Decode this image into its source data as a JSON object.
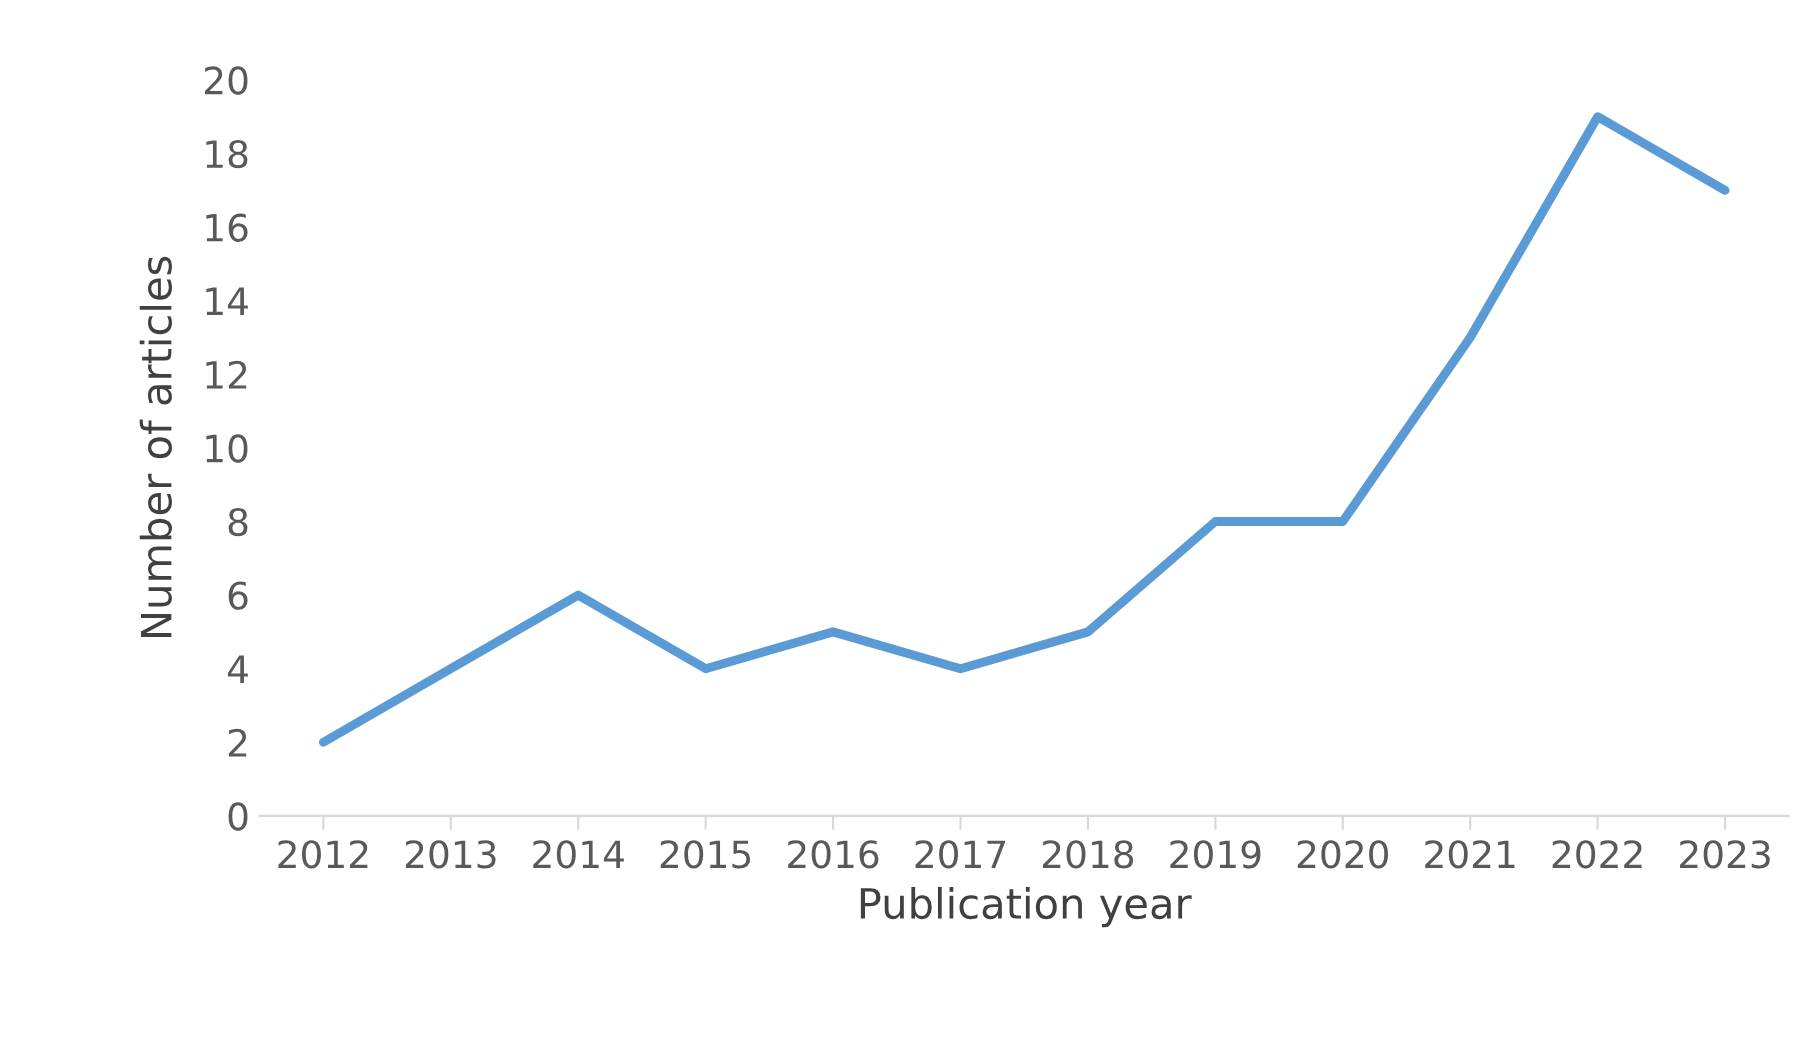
{
  "chart_data": {
    "type": "line",
    "xlabel": "Publication year",
    "ylabel": "Number of articles",
    "categories": [
      "2012",
      "2013",
      "2014",
      "2015",
      "2016",
      "2017",
      "2018",
      "2019",
      "2020",
      "2021",
      "2022",
      "2023"
    ],
    "series": [
      {
        "color": "#5b9bd5",
        "values": [
          2,
          4,
          6,
          4,
          5,
          4,
          5,
          8,
          8,
          13,
          19,
          17
        ]
      }
    ],
    "ylim": [
      0,
      20
    ],
    "yticks": [
      0,
      2,
      4,
      6,
      8,
      10,
      12,
      14,
      16,
      18,
      20
    ],
    "grid": false,
    "marker": "none",
    "line_style": "solid"
  }
}
